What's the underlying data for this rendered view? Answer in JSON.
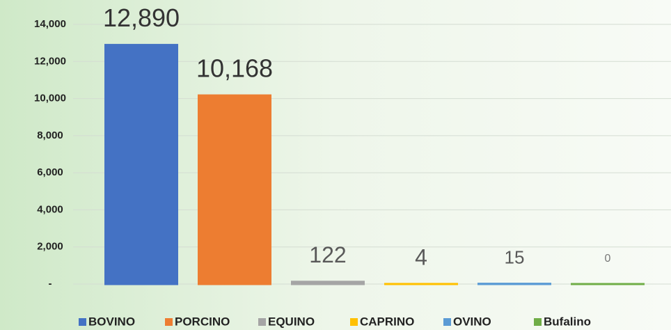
{
  "chart_data": {
    "type": "bar",
    "series": [
      {
        "name": "BOVINO",
        "color": "#4472c4",
        "values": [
          12890
        ],
        "value_labels": [
          "12,890"
        ]
      },
      {
        "name": "PORCINO",
        "color": "#ed7d31",
        "values": [
          10168
        ],
        "value_labels": [
          "10,168"
        ]
      },
      {
        "name": "EQUINO",
        "color": "#a5a5a5",
        "values": [
          122
        ],
        "value_labels": [
          "122"
        ]
      },
      {
        "name": "CAPRINO",
        "color": "#ffc000",
        "values": [
          4
        ],
        "value_labels": [
          "4"
        ]
      },
      {
        "name": "OVINO",
        "color": "#5b9bd5",
        "values": [
          15
        ],
        "value_labels": [
          "15"
        ]
      },
      {
        "name": "Bufalino",
        "color": "#70ad47",
        "values": [
          0
        ],
        "value_labels": [
          "0"
        ]
      }
    ],
    "ylim": [
      0,
      14000
    ],
    "yticks": [
      {
        "value": 0,
        "label": "-"
      },
      {
        "value": 2000,
        "label": "2,000"
      },
      {
        "value": 4000,
        "label": "4,000"
      },
      {
        "value": 6000,
        "label": "6,000"
      },
      {
        "value": 8000,
        "label": "8,000"
      },
      {
        "value": 10000,
        "label": "10,000"
      },
      {
        "value": 12000,
        "label": "12,000"
      },
      {
        "value": 14000,
        "label": "14,000"
      }
    ],
    "grid": true,
    "legend": "bottom"
  }
}
